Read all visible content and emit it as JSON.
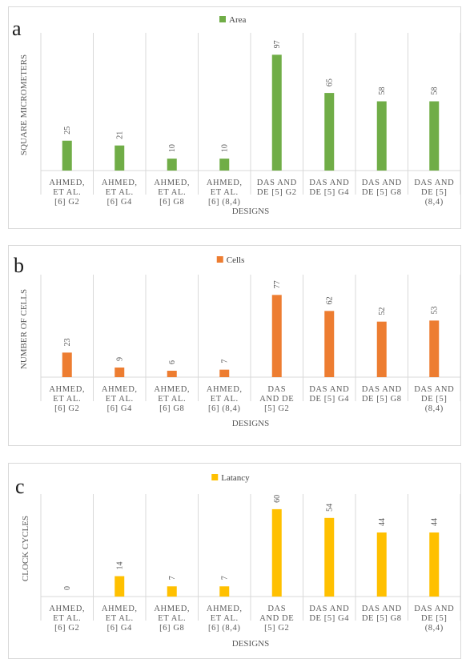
{
  "charts": [
    {
      "panel_letter": "a",
      "legend_label": "Area",
      "ylabel": "SQUARE MICROMETERS",
      "xlabel": "DESIGNS",
      "color": "#70ad47",
      "categories": [
        [
          "AHMED,",
          "ET AL.",
          "[6] G2"
        ],
        [
          "AHMED,",
          "ET AL.",
          "[6] G4"
        ],
        [
          "AHMED,",
          "ET AL.",
          "[6] G8"
        ],
        [
          "AHMED,",
          "ET AL.",
          "[6] (8,4)"
        ],
        [
          "DAS AND",
          "DE [5] G2"
        ],
        [
          "DAS AND",
          "DE [5] G4"
        ],
        [
          "DAS AND",
          "DE [5] G8"
        ],
        [
          "DAS AND",
          "DE [5]",
          "(8,4)"
        ]
      ],
      "values": [
        25,
        21,
        10,
        10,
        97,
        65,
        58,
        58
      ]
    },
    {
      "panel_letter": "b",
      "legend_label": "Cells",
      "ylabel": "NUMBER OF CELLS",
      "xlabel": "DESIGNS",
      "color": "#ed7d31",
      "categories": [
        [
          "AHMED,",
          "ET AL.",
          "[6] G2"
        ],
        [
          "AHMED,",
          "ET AL.",
          "[6] G4"
        ],
        [
          "AHMED,",
          "ET AL.",
          "[6] G8"
        ],
        [
          "AHMED,",
          "ET AL.",
          "[6] (8,4)"
        ],
        [
          "DAS",
          "AND DE",
          "[5] G2"
        ],
        [
          "DAS AND",
          "DE [5] G4"
        ],
        [
          "DAS AND",
          "DE [5] G8"
        ],
        [
          "DAS AND",
          "DE [5]",
          "(8,4)"
        ]
      ],
      "values": [
        23,
        9,
        6,
        7,
        77,
        62,
        52,
        53
      ]
    },
    {
      "panel_letter": "c",
      "legend_label": "Latancy",
      "ylabel": "CLOCK CYCLES",
      "xlabel": "DESIGNS",
      "color": "#ffc000",
      "categories": [
        [
          "AHMED,",
          "ET AL.",
          "[6] G2"
        ],
        [
          "AHMED,",
          "ET AL.",
          "[6] G4"
        ],
        [
          "AHMED,",
          "ET AL.",
          "[6] G8"
        ],
        [
          "AHMED,",
          "ET AL.",
          "[6] (8,4)"
        ],
        [
          "DAS",
          "AND DE",
          "[5] G2"
        ],
        [
          "DAS AND",
          "DE [5] G4"
        ],
        [
          "DAS AND",
          "DE [5] G8"
        ],
        [
          "DAS AND",
          "DE [5]",
          "(8,4)"
        ]
      ],
      "values": [
        0,
        14,
        7,
        7,
        60,
        54,
        44,
        44
      ]
    }
  ],
  "chart_data": [
    {
      "type": "bar",
      "title": "",
      "xlabel": "DESIGNS",
      "ylabel": "SQUARE MICROMETERS",
      "categories": [
        "AHMED, ET AL. [6] G2",
        "AHMED, ET AL. [6] G4",
        "AHMED, ET AL. [6] G8",
        "AHMED, ET AL. [6] (8,4)",
        "DAS AND DE [5] G2",
        "DAS AND DE [5] G4",
        "DAS AND DE [5] G8",
        "DAS AND DE [5] (8,4)"
      ],
      "series": [
        {
          "name": "Area",
          "values": [
            25,
            21,
            10,
            10,
            97,
            65,
            58,
            58
          ]
        }
      ],
      "ylim": [
        0,
        110
      ],
      "grid": "vertical",
      "legend": "top"
    },
    {
      "type": "bar",
      "title": "",
      "xlabel": "DESIGNS",
      "ylabel": "NUMBER OF CELLS",
      "categories": [
        "AHMED, ET AL. [6] G2",
        "AHMED, ET AL. [6] G4",
        "AHMED, ET AL. [6] G8",
        "AHMED, ET AL. [6] (8,4)",
        "DAS AND DE [5] G2",
        "DAS AND DE [5] G4",
        "DAS AND DE [5] G8",
        "DAS AND DE [5] (8,4)"
      ],
      "series": [
        {
          "name": "Cells",
          "values": [
            23,
            9,
            6,
            7,
            77,
            62,
            52,
            53
          ]
        }
      ],
      "ylim": [
        0,
        90
      ],
      "grid": "vertical",
      "legend": "top"
    },
    {
      "type": "bar",
      "title": "",
      "xlabel": "DESIGNS",
      "ylabel": "CLOCK CYCLES",
      "categories": [
        "AHMED, ET AL. [6] G2",
        "AHMED, ET AL. [6] G4",
        "AHMED, ET AL. [6] G8",
        "AHMED, ET AL. [6] (8,4)",
        "DAS AND DE [5] G2",
        "DAS AND DE [5] G4",
        "DAS AND DE [5] G8",
        "DAS AND DE [5] (8,4)"
      ],
      "series": [
        {
          "name": "Latancy",
          "values": [
            0,
            14,
            7,
            7,
            60,
            54,
            44,
            44
          ]
        }
      ],
      "ylim": [
        0,
        66
      ],
      "grid": "vertical",
      "legend": "top"
    }
  ]
}
